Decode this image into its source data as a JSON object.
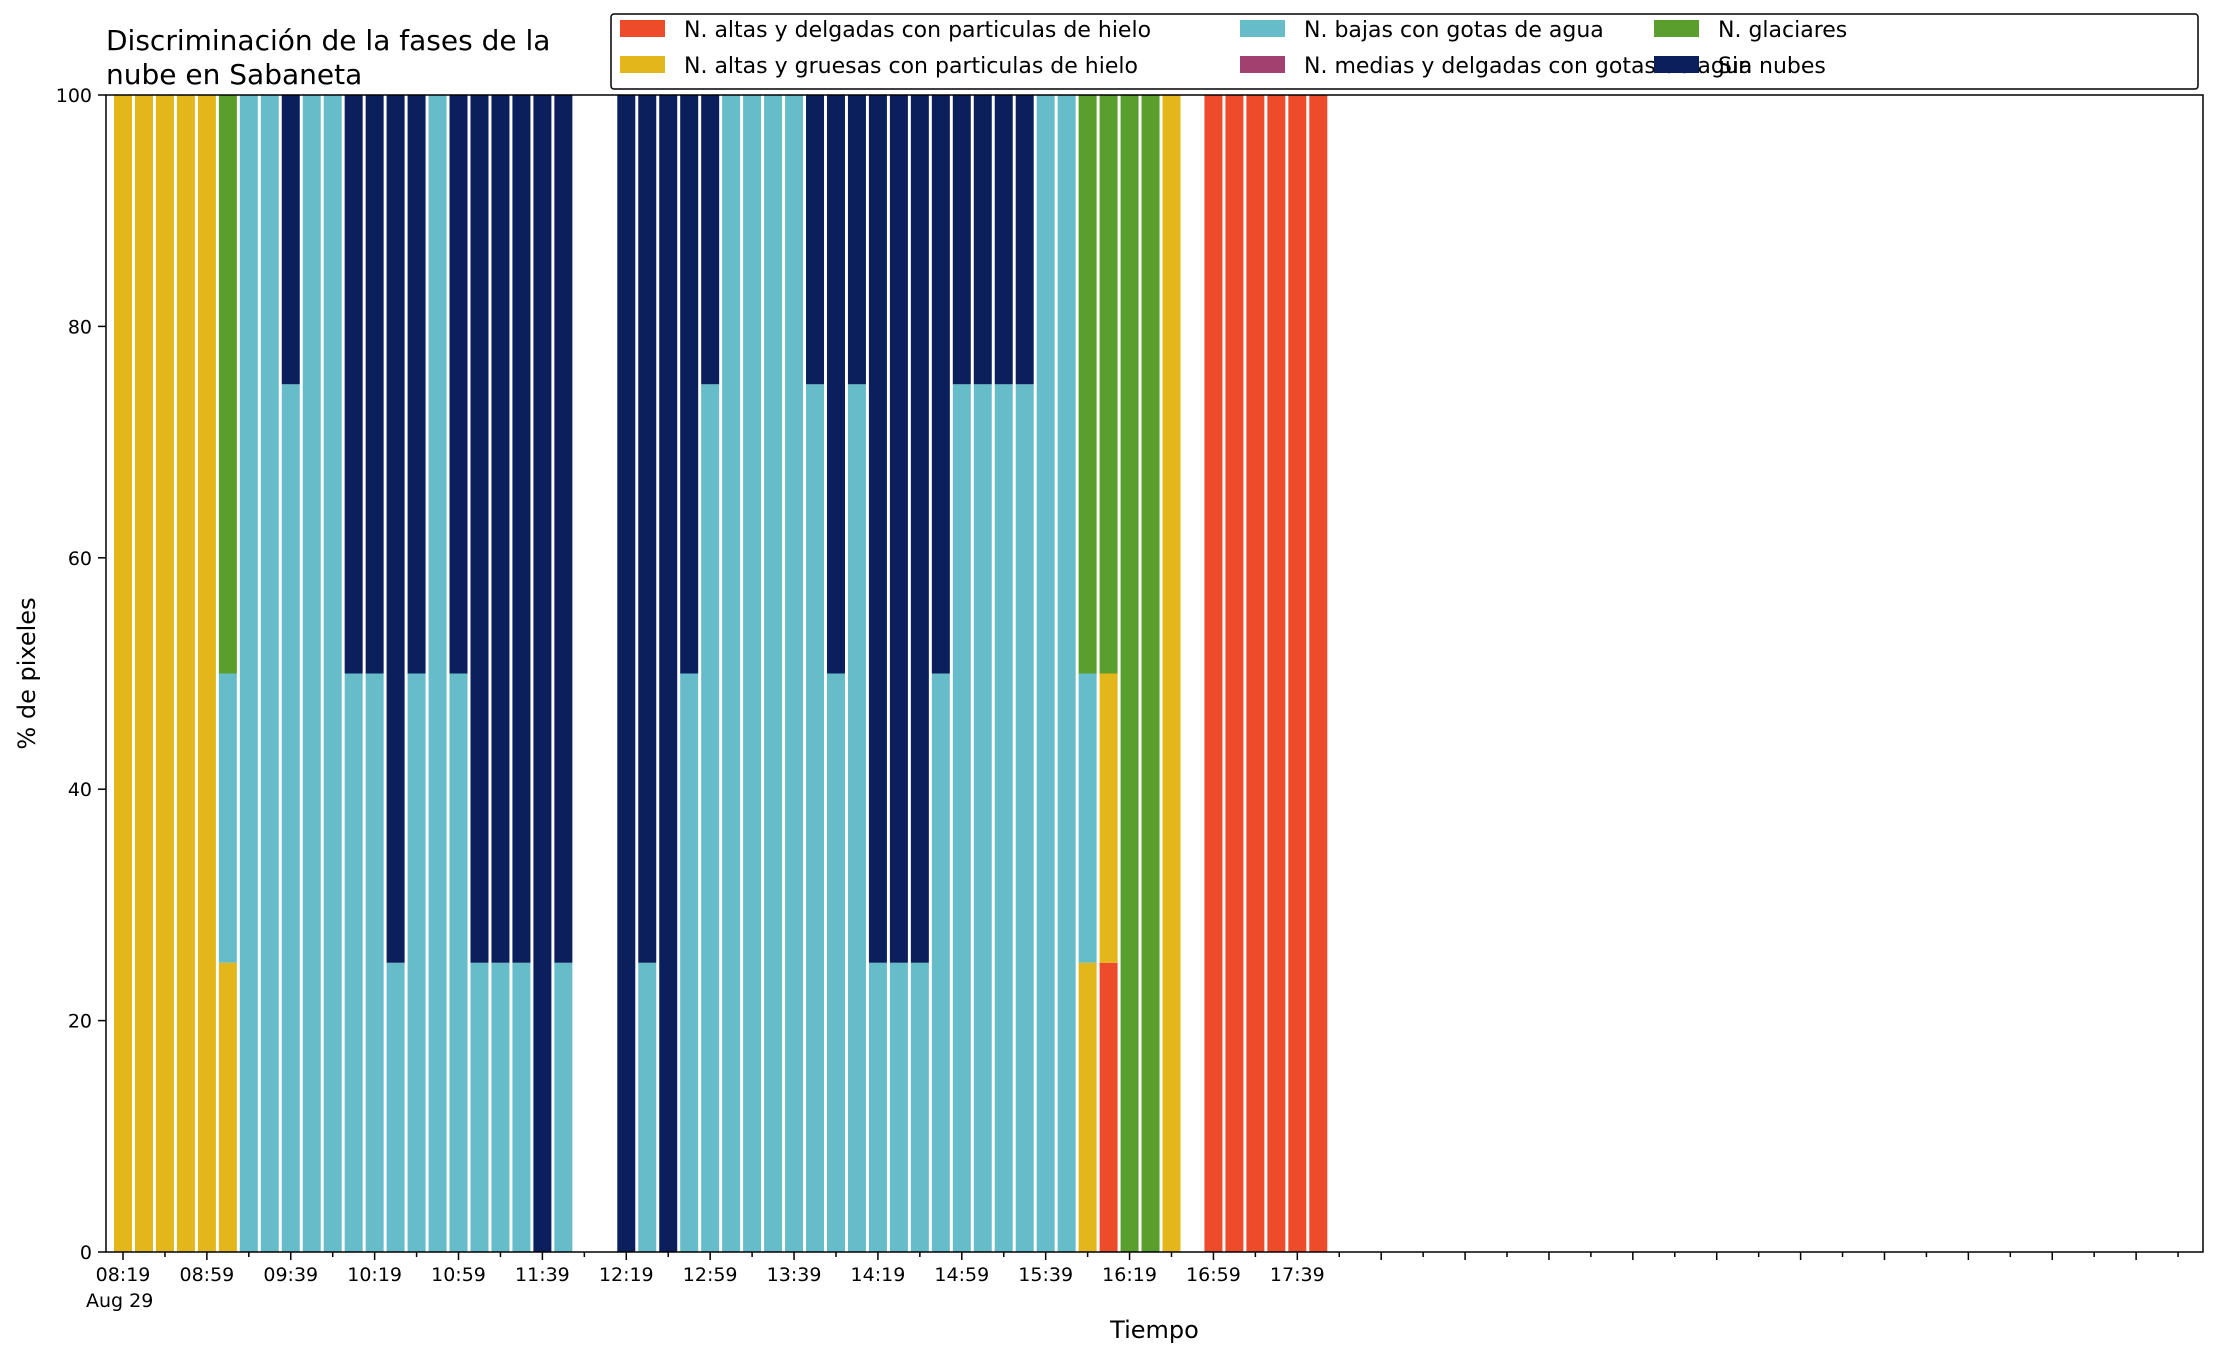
{
  "chart_data": {
    "type": "bar",
    "stacked": true,
    "title_lines": [
      "Discriminación de la fases de la",
      "nube en Sabaneta"
    ],
    "xlabel": "Tiempo",
    "ylabel": "% de pixeles",
    "ylim": [
      0,
      100
    ],
    "yticks": [
      0,
      20,
      40,
      60,
      80,
      100
    ],
    "grid": false,
    "legend_position": "top-right",
    "x_date_label": "Aug 29",
    "x_tick_labels": [
      "08:19",
      "08:59",
      "09:39",
      "10:19",
      "10:59",
      "11:39",
      "12:19",
      "12:59",
      "13:39",
      "14:19",
      "14:59",
      "15:39",
      "16:19",
      "16:59",
      "17:39"
    ],
    "categories": [
      "08:19",
      "08:29",
      "08:39",
      "08:49",
      "08:59",
      "09:09",
      "09:19",
      "09:29",
      "09:39",
      "09:49",
      "09:59",
      "10:09",
      "10:19",
      "10:29",
      "10:39",
      "10:49",
      "10:59",
      "11:09",
      "11:19",
      "11:29",
      "11:39",
      "11:49",
      "11:59",
      "12:09",
      "12:19",
      "12:29",
      "12:39",
      "12:49",
      "12:59",
      "13:09",
      "13:19",
      "13:29",
      "13:39",
      "13:49",
      "13:59",
      "14:09",
      "14:19",
      "14:29",
      "14:39",
      "14:49",
      "14:59",
      "15:09",
      "15:19",
      "15:29",
      "15:39",
      "15:49",
      "15:59",
      "16:09",
      "16:19",
      "16:29",
      "16:39",
      "16:49",
      "16:59",
      "17:09",
      "17:19",
      "17:29",
      "17:39",
      "17:49"
    ],
    "series": [
      {
        "name": "N. altas y delgadas con particulas de hielo",
        "color": "#ee4b2b",
        "values": [
          0,
          0,
          0,
          0,
          0,
          0,
          0,
          0,
          0,
          0,
          0,
          0,
          0,
          0,
          0,
          0,
          0,
          0,
          0,
          0,
          0,
          0,
          0,
          0,
          0,
          0,
          0,
          0,
          0,
          0,
          0,
          0,
          0,
          0,
          0,
          0,
          0,
          0,
          0,
          0,
          0,
          0,
          0,
          0,
          0,
          0,
          0,
          25,
          0,
          0,
          0,
          0,
          100,
          100,
          100,
          100,
          100,
          100
        ]
      },
      {
        "name": "N. altas y gruesas con particulas de hielo",
        "color": "#e3b61a",
        "values": [
          100,
          100,
          100,
          100,
          100,
          25,
          0,
          0,
          0,
          0,
          0,
          0,
          0,
          0,
          0,
          0,
          0,
          0,
          0,
          0,
          0,
          0,
          0,
          0,
          0,
          0,
          0,
          0,
          0,
          0,
          0,
          0,
          0,
          0,
          0,
          0,
          0,
          0,
          0,
          0,
          0,
          0,
          0,
          0,
          0,
          0,
          25,
          25,
          0,
          0,
          100,
          0,
          0,
          0,
          0,
          0,
          0,
          0
        ]
      },
      {
        "name": "N. bajas con gotas de agua",
        "color": "#66bcc8",
        "values": [
          0,
          0,
          0,
          0,
          0,
          25,
          100,
          100,
          75,
          100,
          100,
          50,
          50,
          25,
          50,
          100,
          50,
          25,
          25,
          25,
          0,
          25,
          0,
          0,
          0,
          25,
          0,
          50,
          75,
          100,
          100,
          100,
          100,
          75,
          50,
          75,
          25,
          25,
          25,
          50,
          75,
          75,
          75,
          75,
          100,
          100,
          25,
          0,
          0,
          0,
          0,
          0,
          0,
          0,
          0,
          0,
          0,
          0
        ]
      },
      {
        "name": "N. medias y delgadas con gotas de agua",
        "color": "#a2416f",
        "values": [
          0,
          0,
          0,
          0,
          0,
          0,
          0,
          0,
          0,
          0,
          0,
          0,
          0,
          0,
          0,
          0,
          0,
          0,
          0,
          0,
          0,
          0,
          0,
          0,
          0,
          0,
          0,
          0,
          0,
          0,
          0,
          0,
          0,
          0,
          0,
          0,
          0,
          0,
          0,
          0,
          0,
          0,
          0,
          0,
          0,
          0,
          0,
          0,
          0,
          0,
          0,
          0,
          0,
          0,
          0,
          0,
          0,
          0
        ]
      },
      {
        "name": "N. glaciares",
        "color": "#5a9e2d",
        "values": [
          0,
          0,
          0,
          0,
          0,
          50,
          0,
          0,
          0,
          0,
          0,
          0,
          0,
          0,
          0,
          0,
          0,
          0,
          0,
          0,
          0,
          0,
          0,
          0,
          0,
          0,
          0,
          0,
          0,
          0,
          0,
          0,
          0,
          0,
          0,
          0,
          0,
          0,
          0,
          0,
          0,
          0,
          0,
          0,
          0,
          0,
          50,
          50,
          100,
          100,
          0,
          0,
          0,
          0,
          0,
          0,
          0,
          0
        ]
      },
      {
        "name": "Sin nubes",
        "color": "#0a1f5c",
        "values": [
          0,
          0,
          0,
          0,
          0,
          0,
          0,
          0,
          25,
          0,
          0,
          50,
          50,
          75,
          50,
          0,
          50,
          75,
          75,
          75,
          100,
          75,
          0,
          0,
          100,
          75,
          100,
          50,
          25,
          0,
          0,
          0,
          0,
          25,
          50,
          25,
          75,
          75,
          75,
          50,
          25,
          25,
          25,
          25,
          0,
          0,
          0,
          0,
          0,
          0,
          0,
          0,
          0,
          0,
          0,
          0,
          0,
          0
        ]
      }
    ]
  }
}
